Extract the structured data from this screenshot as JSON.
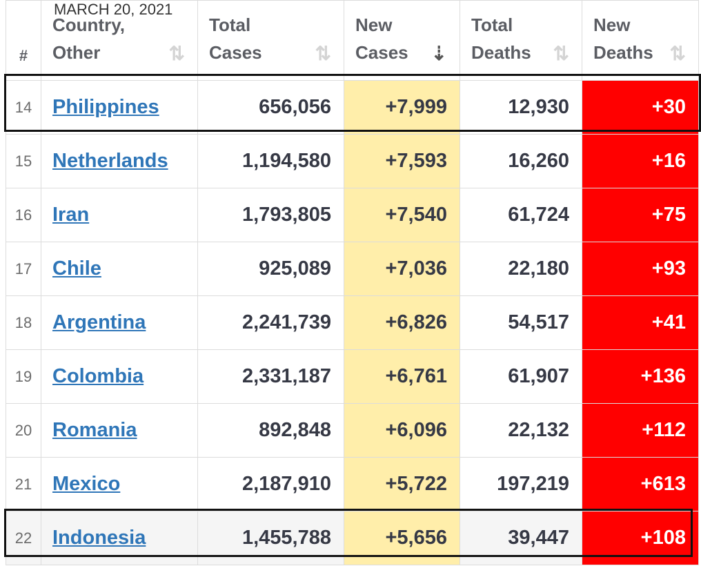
{
  "date": "MARCH 20, 2021",
  "headers": {
    "rank": "#",
    "country_line1": "Country,",
    "country_line2": "Other",
    "total_cases_line1": "Total",
    "total_cases_line2": "Cases",
    "new_cases_line1": "New",
    "new_cases_line2": "Cases",
    "total_deaths_line1": "Total",
    "total_deaths_line2": "Deaths",
    "new_deaths_line1": "New",
    "new_deaths_line2": "Deaths"
  },
  "icons": {
    "sort": "sort-icon",
    "sort_active": "sort-descending-icon"
  },
  "colors": {
    "new_cases_bg": "#ffeeaa",
    "new_deaths_bg": "#ff0000",
    "link": "#2f76b8"
  },
  "rows": [
    {
      "rank": "14",
      "country": "Philippines",
      "total_cases": "656,056",
      "new_cases": "+7,999",
      "total_deaths": "12,930",
      "new_deaths": "+30"
    },
    {
      "rank": "15",
      "country": "Netherlands",
      "total_cases": "1,194,580",
      "new_cases": "+7,593",
      "total_deaths": "16,260",
      "new_deaths": "+16"
    },
    {
      "rank": "16",
      "country": "Iran",
      "total_cases": "1,793,805",
      "new_cases": "+7,540",
      "total_deaths": "61,724",
      "new_deaths": "+75"
    },
    {
      "rank": "17",
      "country": "Chile",
      "total_cases": "925,089",
      "new_cases": "+7,036",
      "total_deaths": "22,180",
      "new_deaths": "+93"
    },
    {
      "rank": "18",
      "country": "Argentina",
      "total_cases": "2,241,739",
      "new_cases": "+6,826",
      "total_deaths": "54,517",
      "new_deaths": "+41"
    },
    {
      "rank": "19",
      "country": "Colombia",
      "total_cases": "2,331,187",
      "new_cases": "+6,761",
      "total_deaths": "61,907",
      "new_deaths": "+136"
    },
    {
      "rank": "20",
      "country": "Romania",
      "total_cases": "892,848",
      "new_cases": "+6,096",
      "total_deaths": "22,132",
      "new_deaths": "+112"
    },
    {
      "rank": "21",
      "country": "Mexico",
      "total_cases": "2,187,910",
      "new_cases": "+5,722",
      "total_deaths": "197,219",
      "new_deaths": "+613"
    },
    {
      "rank": "22",
      "country": "Indonesia",
      "total_cases": "1,455,788",
      "new_cases": "+5,656",
      "total_deaths": "39,447",
      "new_deaths": "+108"
    }
  ]
}
